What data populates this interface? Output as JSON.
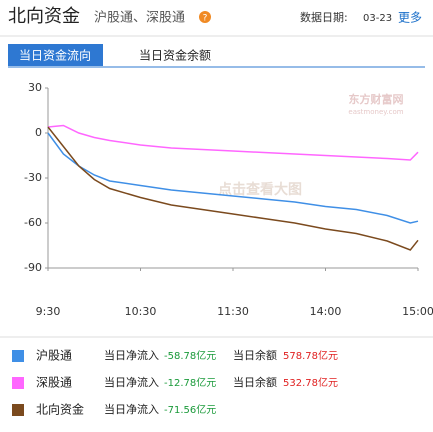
{
  "header": {
    "title": "北向资金",
    "subtitle": "沪股通、深股通",
    "help": "?",
    "date_label": "数据日期:",
    "date": "03-23",
    "more": "更多"
  },
  "tabs": [
    "当日资金流向",
    "当日资金余额"
  ],
  "chart_data": {
    "type": "line",
    "watermark": "点击查看大图",
    "logo": "东方财富网",
    "logo_sub": "eastmoney.com",
    "x": [
      0,
      10,
      20,
      30,
      40,
      60,
      80,
      100,
      120,
      140,
      160,
      180,
      200,
      220,
      235,
      240
    ],
    "xlim": [
      0,
      240
    ],
    "xticks": [
      {
        "value": 0,
        "label": "9:30"
      },
      {
        "value": 60,
        "label": "10:30"
      },
      {
        "value": 120,
        "label": "11:30"
      },
      {
        "value": 180,
        "label": "14:00"
      },
      {
        "value": 240,
        "label": "15:00"
      }
    ],
    "ylim": [
      -90,
      30
    ],
    "yticks": [
      30,
      0,
      -30,
      -60,
      -90
    ],
    "series": [
      {
        "name": "沪股通",
        "color": "#3f8fe6",
        "values": [
          0,
          -14,
          -22,
          -28,
          -32,
          -35,
          -38,
          -40,
          -42,
          -44,
          -46,
          -49,
          -51,
          -55,
          -60,
          -58.78
        ]
      },
      {
        "name": "深股通",
        "color": "#ff66ff",
        "values": [
          4,
          5,
          0,
          -3,
          -5,
          -8,
          -10,
          -11,
          -12,
          -13,
          -14,
          -15,
          -16,
          -17,
          -18,
          -12.78
        ]
      },
      {
        "name": "北向资金",
        "color": "#7b4a1e",
        "values": [
          4,
          -9,
          -22,
          -31,
          -37,
          -43,
          -48,
          -51,
          -54,
          -57,
          -60,
          -64,
          -67,
          -72,
          -78,
          -71.56
        ]
      }
    ]
  },
  "summary": [
    {
      "net_label": "当日净流入",
      "net": "-58.78亿元",
      "bal_label": "当日余额",
      "bal": "578.78亿元"
    },
    {
      "net_label": "当日净流入",
      "net": "-12.78亿元",
      "bal_label": "当日余额",
      "bal": "532.78亿元"
    },
    {
      "net_label": "当日净流入",
      "net": "-71.56亿元"
    }
  ]
}
